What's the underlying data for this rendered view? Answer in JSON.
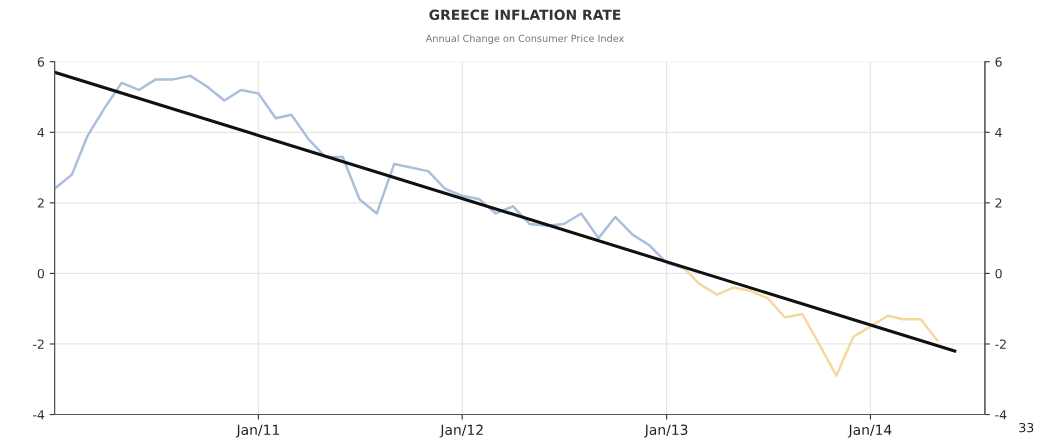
{
  "chart_data": {
    "type": "line",
    "title": "GREECE INFLATION RATE",
    "subtitle": "Annual Change on Consumer Price Index",
    "series": [
      {
        "color": "#a9bfdc",
        "x": [
          "2010-01",
          "2010-02",
          "2010-03",
          "2010-04",
          "2010-05",
          "2010-06",
          "2010-07",
          "2010-08",
          "2010-09",
          "2010-10",
          "2010-11",
          "2010-12",
          "2011-01",
          "2011-02",
          "2011-03",
          "2011-04",
          "2011-05",
          "2011-06",
          "2011-07",
          "2011-08",
          "2011-09",
          "2011-10",
          "2011-11",
          "2011-12",
          "2012-01",
          "2012-02",
          "2012-03",
          "2012-04",
          "2012-05",
          "2012-06",
          "2012-07",
          "2012-08",
          "2012-09",
          "2012-10",
          "2012-11",
          "2012-12",
          "2013-01",
          "2013-02"
        ],
        "values": [
          2.4,
          2.8,
          3.9,
          4.7,
          5.4,
          5.2,
          5.5,
          5.5,
          5.6,
          5.3,
          4.9,
          5.2,
          5.1,
          4.4,
          4.5,
          3.8,
          3.3,
          3.3,
          2.1,
          1.7,
          3.1,
          3.0,
          2.9,
          2.4,
          2.2,
          2.1,
          1.7,
          1.9,
          1.4,
          1.35,
          1.4,
          1.7,
          1.0,
          1.6,
          1.1,
          0.8,
          0.3,
          0.15
        ]
      },
      {
        "color": "#f5d89c",
        "x": [
          "2013-02",
          "2013-03",
          "2013-04",
          "2013-05",
          "2013-06",
          "2013-07",
          "2013-08",
          "2013-09",
          "2013-10",
          "2013-11",
          "2013-12",
          "2014-01",
          "2014-02",
          "2014-03",
          "2014-04",
          "2014-05"
        ],
        "values": [
          0.15,
          -0.3,
          -0.6,
          -0.4,
          -0.5,
          -0.7,
          -1.25,
          -1.15,
          -2.0,
          -2.9,
          -1.8,
          -1.5,
          -1.2,
          -1.3,
          -1.3,
          -1.9
        ]
      },
      {
        "color": "#111111",
        "x": [
          "2010-01",
          "2014-06"
        ],
        "values": [
          5.7,
          -2.2
        ]
      }
    ],
    "xlim": [
      "2010-01-01",
      "2014-07-25"
    ],
    "xticks": [
      {
        "value": "2011-01-01",
        "label": "Jan/11"
      },
      {
        "value": "2012-01-01",
        "label": "Jan/12"
      },
      {
        "value": "2013-01-01",
        "label": "Jan/13"
      },
      {
        "value": "2014-01-01",
        "label": "Jan/14"
      }
    ],
    "ylim": [
      -4,
      6
    ],
    "yticks": [
      -4,
      -2,
      0,
      2,
      4,
      6
    ],
    "y2lim": [
      -4,
      6
    ],
    "y2ticks": [
      -4,
      -2,
      0,
      2,
      4,
      6
    ],
    "grid": true,
    "marker": "none",
    "line_style": "solid",
    "annotations": [
      "33"
    ]
  }
}
